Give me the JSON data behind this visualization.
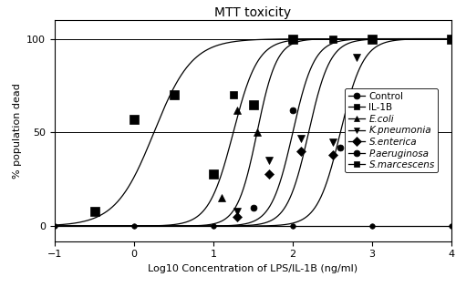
{
  "title": "MTT toxicity",
  "xlabel": "Log10 Concentration of LPS/IL-1B (ng/ml)",
  "ylabel": "% population dead",
  "xlim": [
    -1,
    4
  ],
  "ylim": [
    -8,
    110
  ],
  "yticks": [
    0,
    50,
    100
  ],
  "xticks": [
    -1,
    0,
    1,
    2,
    3,
    4
  ],
  "curve_params": [
    {
      "label": "Control",
      "ec50": 6.5,
      "hill": 2.0,
      "marker": "o",
      "msize": 4
    },
    {
      "label": "IL-1B",
      "ec50": 1.25,
      "hill": 2.8,
      "marker": "s",
      "msize": 6
    },
    {
      "label": "E.coli",
      "ec50": 1.55,
      "hill": 3.5,
      "marker": "^",
      "msize": 6
    },
    {
      "label": "K.pneumonia",
      "ec50": 2.0,
      "hill": 3.2,
      "marker": "v",
      "msize": 6
    },
    {
      "label": "S.enterica",
      "ec50": 2.2,
      "hill": 3.2,
      "marker": "D",
      "msize": 5
    },
    {
      "label": "P.aeruginosa",
      "ec50": 2.6,
      "hill": 3.0,
      "marker": "o",
      "msize": 5
    },
    {
      "label": "S.marcescens",
      "ec50": 0.25,
      "hill": 1.8,
      "marker": "s",
      "msize": 7
    }
  ],
  "data_points": [
    {
      "x": [
        -1,
        0,
        1,
        2,
        3,
        4
      ],
      "y": [
        0,
        0,
        0,
        0,
        0,
        0
      ]
    },
    {
      "x": [
        1.0,
        1.25,
        1.5,
        2.0,
        2.5
      ],
      "y": [
        28,
        70,
        65,
        100,
        100
      ]
    },
    {
      "x": [
        1.1,
        1.3,
        1.55,
        2.0
      ],
      "y": [
        15,
        62,
        50,
        100
      ]
    },
    {
      "x": [
        1.3,
        1.7,
        2.1,
        2.5,
        2.8
      ],
      "y": [
        8,
        35,
        47,
        45,
        90
      ]
    },
    {
      "x": [
        1.3,
        1.7,
        2.1,
        2.5
      ],
      "y": [
        5,
        28,
        40,
        38
      ]
    },
    {
      "x": [
        1.5,
        2.0,
        2.6,
        3.0
      ],
      "y": [
        10,
        62,
        42,
        100
      ]
    },
    {
      "x": [
        -0.5,
        0.0,
        0.5,
        1.0,
        1.5,
        2.0,
        3.0,
        4.0
      ],
      "y": [
        8,
        57,
        70,
        28,
        65,
        100,
        100,
        100
      ]
    }
  ],
  "legend_labels": [
    "Control",
    "IL-1B",
    "E.coli",
    "K.pneumonia",
    "S.enterica",
    "P.aeruginosa",
    "S.marcescens"
  ],
  "legend_italic": [
    false,
    false,
    true,
    true,
    true,
    true,
    true
  ],
  "legend_markers": [
    "o",
    "s",
    "^",
    "v",
    "D",
    "o",
    "s"
  ],
  "background_color": "#ffffff",
  "fontsize_title": 10,
  "fontsize_labels": 8,
  "fontsize_ticks": 8,
  "fontsize_legend": 7.5
}
